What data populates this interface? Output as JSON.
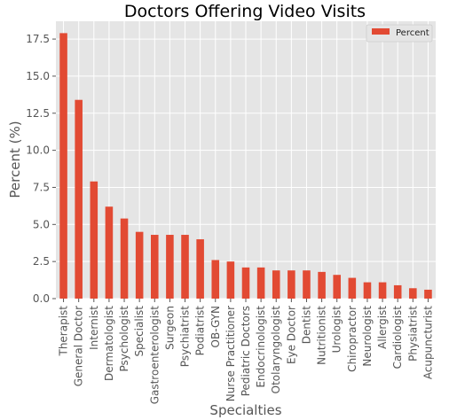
{
  "chart_data": {
    "type": "bar",
    "title": "Doctors Offering Video Visits",
    "xlabel": "Specialties",
    "ylabel": "Percent (%)",
    "ylim": [
      0,
      18.7
    ],
    "yticks": [
      "0.0",
      "2.5",
      "5.0",
      "7.5",
      "10.0",
      "12.5",
      "15.0",
      "17.5"
    ],
    "grid": true,
    "legend_position": "top-right",
    "categories": [
      "Therapist",
      "General Doctor",
      "Internist",
      "Dermatologist",
      "Psychologist",
      "Specialist",
      "Gastroenterologist",
      "Surgeon",
      "Psychiatrist",
      "Podiatrist",
      "OB-GYN",
      "Nurse Practitioner",
      "Pediatric Doctors",
      "Endocrinologist",
      "Otolaryngologist",
      "Eye Doctor",
      "Dentist",
      "Nutritionist",
      "Urologist",
      "Chiropractor",
      "Neurologist",
      "Allergist",
      "Cardiologist",
      "Physiatrist",
      "Acupuncturist"
    ],
    "series": [
      {
        "name": "Percent",
        "color": "#E24A33",
        "values": [
          17.9,
          13.4,
          7.9,
          6.2,
          5.4,
          4.5,
          4.3,
          4.3,
          4.3,
          4.0,
          2.6,
          2.5,
          2.1,
          2.1,
          1.9,
          1.9,
          1.9,
          1.8,
          1.6,
          1.4,
          1.1,
          1.1,
          0.9,
          0.7,
          0.6
        ]
      }
    ],
    "colors": {
      "plot_background": "#E5E5E5",
      "grid": "#FFFFFF",
      "bar": "#E24A33"
    }
  }
}
